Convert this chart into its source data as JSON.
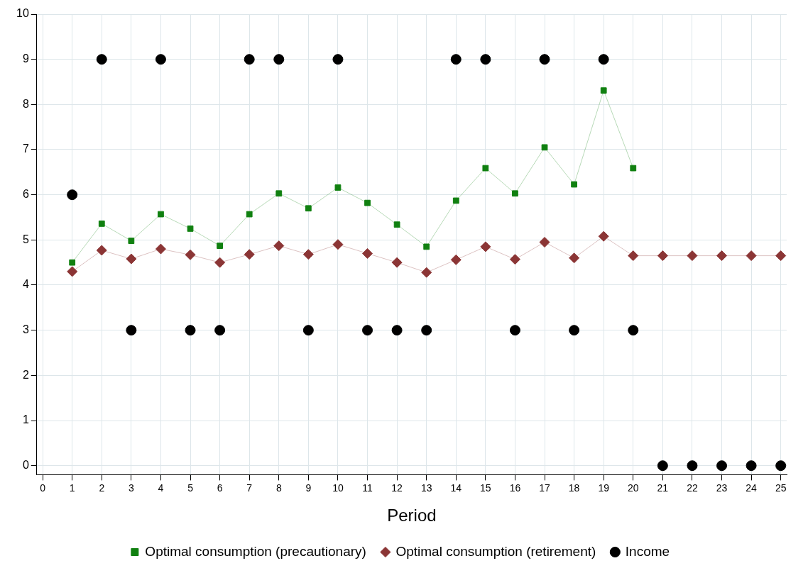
{
  "chart_data": {
    "type": "line",
    "xlabel": "Period",
    "xlim": [
      -0.2,
      25.2
    ],
    "xticks": [
      0,
      1,
      2,
      3,
      4,
      5,
      6,
      7,
      8,
      9,
      10,
      11,
      12,
      13,
      14,
      15,
      16,
      17,
      18,
      19,
      20,
      21,
      22,
      23,
      24,
      25
    ],
    "ylim": [
      -0.2,
      10
    ],
    "yticks": [
      0,
      1,
      2,
      3,
      4,
      5,
      6,
      7,
      8,
      9,
      10
    ],
    "grid": true,
    "legend": "bottom",
    "series": [
      {
        "name": "Optimal consumption (precautionary)",
        "marker": "square",
        "color": "#108010",
        "x": [
          1,
          2,
          3,
          4,
          5,
          6,
          7,
          8,
          9,
          10,
          11,
          12,
          13,
          14,
          15,
          16,
          17,
          18,
          19,
          20
        ],
        "values": [
          4.5,
          5.36,
          4.98,
          5.57,
          5.25,
          4.87,
          5.57,
          6.03,
          5.7,
          6.16,
          5.82,
          5.34,
          4.85,
          5.87,
          6.59,
          6.03,
          7.05,
          6.23,
          8.31,
          6.59
        ]
      },
      {
        "name": "Optimal consumption (retirement)",
        "marker": "diamond",
        "color": "#8b3535",
        "x": [
          1,
          2,
          3,
          4,
          5,
          6,
          7,
          8,
          9,
          10,
          11,
          12,
          13,
          14,
          15,
          16,
          17,
          18,
          19,
          20,
          21,
          22,
          23,
          24,
          25
        ],
        "values": [
          4.3,
          4.77,
          4.58,
          4.8,
          4.67,
          4.5,
          4.68,
          4.87,
          4.68,
          4.9,
          4.7,
          4.5,
          4.28,
          4.56,
          4.85,
          4.57,
          4.95,
          4.6,
          5.08,
          4.65,
          4.65,
          4.65,
          4.65,
          4.65,
          4.65
        ]
      },
      {
        "name": "Income",
        "type": "scatter",
        "marker": "circle",
        "color": "#000000",
        "x": [
          1,
          2,
          3,
          4,
          5,
          6,
          7,
          8,
          9,
          10,
          11,
          12,
          13,
          14,
          15,
          16,
          17,
          18,
          19,
          20,
          21,
          22,
          23,
          24,
          25
        ],
        "values": [
          6,
          9,
          3,
          9,
          3,
          3,
          9,
          9,
          3,
          9,
          3,
          3,
          3,
          9,
          9,
          3,
          9,
          3,
          9,
          3,
          0,
          0,
          0,
          0,
          0
        ]
      }
    ]
  }
}
